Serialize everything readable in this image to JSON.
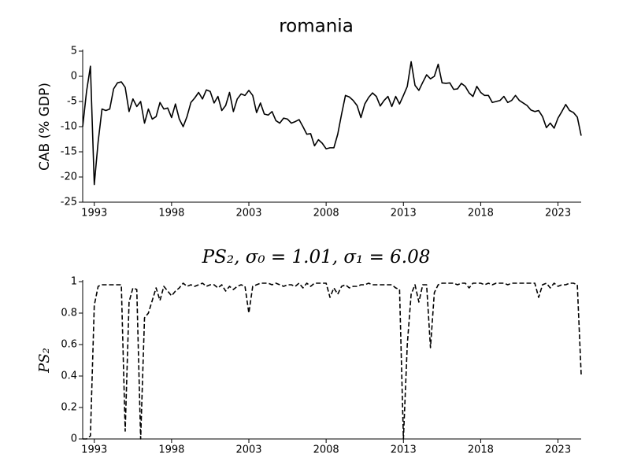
{
  "chart_data": [
    {
      "type": "line",
      "title": "romania",
      "ylabel": "CAB (% GDP)",
      "color": "#000000",
      "line_style": "solid",
      "x": [
        1992.25,
        1992.5,
        1992.75,
        1993,
        1993.25,
        1993.5,
        1993.75,
        1994,
        1994.25,
        1994.5,
        1994.75,
        1995,
        1995.25,
        1995.5,
        1995.75,
        1996,
        1996.25,
        1996.5,
        1996.75,
        1997,
        1997.25,
        1997.5,
        1997.75,
        1998,
        1998.25,
        1998.5,
        1998.75,
        1999,
        1999.25,
        1999.5,
        1999.75,
        2000,
        2000.25,
        2000.5,
        2000.75,
        2001,
        2001.25,
        2001.5,
        2001.75,
        2002,
        2002.25,
        2002.5,
        2002.75,
        2003,
        2003.25,
        2003.5,
        2003.75,
        2004,
        2004.25,
        2004.5,
        2004.75,
        2005,
        2005.25,
        2005.5,
        2005.75,
        2006,
        2006.25,
        2006.5,
        2006.75,
        2007,
        2007.25,
        2007.5,
        2007.75,
        2008,
        2008.25,
        2008.5,
        2008.75,
        2009,
        2009.25,
        2009.5,
        2009.75,
        2010,
        2010.25,
        2010.5,
        2010.75,
        2011,
        2011.25,
        2011.5,
        2011.75,
        2012,
        2012.25,
        2012.5,
        2012.75,
        2013,
        2013.25,
        2013.5,
        2013.75,
        2014,
        2014.25,
        2014.5,
        2014.75,
        2015,
        2015.25,
        2015.5,
        2015.75,
        2016,
        2016.25,
        2016.5,
        2016.75,
        2017,
        2017.25,
        2017.5,
        2017.75,
        2018,
        2018.25,
        2018.5,
        2018.75,
        2019,
        2019.25,
        2019.5,
        2019.75,
        2020,
        2020.25,
        2020.5,
        2020.75,
        2021,
        2021.25,
        2021.5,
        2021.75,
        2022,
        2022.25,
        2022.5,
        2022.75,
        2023,
        2023.25,
        2023.5,
        2023.75,
        2024,
        2024.25,
        2024.5
      ],
      "values": [
        -10,
        -3,
        2,
        -21.5,
        -13,
        -6.5,
        -6.8,
        -6.5,
        -2.5,
        -1.3,
        -1.1,
        -2.2,
        -7,
        -4.5,
        -6,
        -5,
        -9.3,
        -6.5,
        -8.5,
        -8,
        -5.2,
        -6.5,
        -6.3,
        -8.2,
        -5.5,
        -8.5,
        -10,
        -8,
        -5.2,
        -4.3,
        -3.2,
        -4.5,
        -2.7,
        -3,
        -5.3,
        -4,
        -6.8,
        -5.8,
        -3.2,
        -7,
        -4.5,
        -3.5,
        -3.8,
        -2.8,
        -3.8,
        -7.2,
        -5.3,
        -7.5,
        -7.7,
        -7,
        -8.8,
        -9.3,
        -8.3,
        -8.5,
        -9.3,
        -9,
        -8.6,
        -10,
        -11.5,
        -11.4,
        -13.8,
        -12.6,
        -13.3,
        -14.4,
        -14.2,
        -14.2,
        -11.5,
        -7.5,
        -3.8,
        -4.1,
        -4.8,
        -5.8,
        -8.2,
        -5.5,
        -4.2,
        -3.3,
        -4,
        -5.9,
        -4.8,
        -4,
        -6,
        -4,
        -5.5,
        -3.8,
        -2,
        2.9,
        -1.8,
        -2.8,
        -1.2,
        0.3,
        -0.5,
        0,
        2.4,
        -1.3,
        -1.4,
        -1.3,
        -2.6,
        -2.5,
        -1.4,
        -2,
        -3.3,
        -4,
        -2,
        -3.2,
        -3.8,
        -3.8,
        -5.2,
        -5,
        -4.8,
        -4,
        -5.2,
        -4.8,
        -3.8,
        -4.8,
        -5.3,
        -5.8,
        -6.7,
        -7,
        -6.8,
        -8,
        -10.2,
        -9.3,
        -10.3,
        -8.3,
        -7,
        -5.6,
        -6.8,
        -7.2,
        -8.1,
        -11.8
      ],
      "xlim": [
        1992.25,
        2024.5
      ],
      "xticks": [
        1993,
        1998,
        2003,
        2008,
        2013,
        2018,
        2023
      ],
      "ylim": [
        -25,
        5
      ],
      "yticks": [
        -25,
        -20,
        -15,
        -10,
        -5,
        0,
        5
      ]
    },
    {
      "type": "line",
      "title": "PS₂, σ₀ = 1.01, σ₁ = 6.08",
      "ylabel": "PS₂",
      "color": "#000000",
      "line_style": "dashed",
      "x": [
        1992.25,
        1992.5,
        1992.75,
        1993,
        1993.25,
        1993.5,
        1993.75,
        1994,
        1994.25,
        1994.5,
        1994.75,
        1995,
        1995.25,
        1995.5,
        1995.75,
        1996,
        1996.25,
        1996.5,
        1996.75,
        1997,
        1997.25,
        1997.5,
        1997.75,
        1998,
        1998.25,
        1998.5,
        1998.75,
        1999,
        1999.25,
        1999.5,
        1999.75,
        2000,
        2000.25,
        2000.5,
        2000.75,
        2001,
        2001.25,
        2001.5,
        2001.75,
        2002,
        2002.25,
        2002.5,
        2002.75,
        2003,
        2003.25,
        2003.5,
        2003.75,
        2004,
        2004.25,
        2004.5,
        2004.75,
        2005,
        2005.25,
        2005.5,
        2005.75,
        2006,
        2006.25,
        2006.5,
        2006.75,
        2007,
        2007.25,
        2007.5,
        2007.75,
        2008,
        2008.25,
        2008.5,
        2008.75,
        2009,
        2009.25,
        2009.5,
        2009.75,
        2010,
        2010.25,
        2010.5,
        2010.75,
        2011,
        2011.25,
        2011.5,
        2011.75,
        2012,
        2012.25,
        2012.5,
        2012.75,
        2013,
        2013.25,
        2013.5,
        2013.75,
        2014,
        2014.25,
        2014.5,
        2014.75,
        2015,
        2015.25,
        2015.5,
        2015.75,
        2016,
        2016.25,
        2016.5,
        2016.75,
        2017,
        2017.25,
        2017.5,
        2017.75,
        2018,
        2018.25,
        2018.5,
        2018.75,
        2019,
        2019.25,
        2019.5,
        2019.75,
        2020,
        2020.25,
        2020.5,
        2020.75,
        2021,
        2021.25,
        2021.5,
        2021.75,
        2022,
        2022.25,
        2022.5,
        2022.75,
        2023,
        2023.25,
        2023.5,
        2023.75,
        2024,
        2024.25,
        2024.5
      ],
      "values": [
        0,
        0,
        0.02,
        0.85,
        0.97,
        0.98,
        0.98,
        0.98,
        0.98,
        0.98,
        0.98,
        0.05,
        0.87,
        0.96,
        0.95,
        0,
        0.77,
        0.8,
        0.88,
        0.96,
        0.88,
        0.97,
        0.94,
        0.91,
        0.94,
        0.96,
        0.99,
        0.97,
        0.98,
        0.97,
        0.98,
        0.99,
        0.97,
        0.98,
        0.98,
        0.96,
        0.98,
        0.94,
        0.97,
        0.95,
        0.97,
        0.98,
        0.97,
        0.8,
        0.97,
        0.98,
        0.99,
        0.99,
        0.99,
        0.98,
        0.99,
        0.98,
        0.97,
        0.98,
        0.98,
        0.97,
        0.99,
        0.96,
        0.99,
        0.97,
        0.99,
        0.99,
        0.99,
        0.99,
        0.9,
        0.96,
        0.92,
        0.97,
        0.98,
        0.96,
        0.97,
        0.97,
        0.98,
        0.98,
        0.99,
        0.98,
        0.98,
        0.98,
        0.98,
        0.98,
        0.98,
        0.96,
        0.95,
        0,
        0.6,
        0.92,
        0.98,
        0.87,
        0.98,
        0.98,
        0.58,
        0.93,
        0.98,
        0.99,
        0.99,
        0.99,
        0.99,
        0.98,
        0.99,
        0.99,
        0.96,
        0.99,
        0.99,
        0.99,
        0.98,
        0.99,
        0.98,
        0.99,
        0.99,
        0.99,
        0.98,
        0.99,
        0.99,
        0.99,
        0.99,
        0.99,
        0.99,
        0.99,
        0.9,
        0.98,
        0.99,
        0.96,
        0.99,
        0.97,
        0.98,
        0.98,
        0.99,
        0.99,
        0.98,
        0.41
      ],
      "xlim": [
        1992.25,
        2024.5
      ],
      "xticks": [
        1993,
        1998,
        2003,
        2008,
        2013,
        2018,
        2023
      ],
      "ylim": [
        0,
        1
      ],
      "yticks": [
        0,
        0.2,
        0.4,
        0.6,
        0.8,
        1
      ]
    }
  ]
}
